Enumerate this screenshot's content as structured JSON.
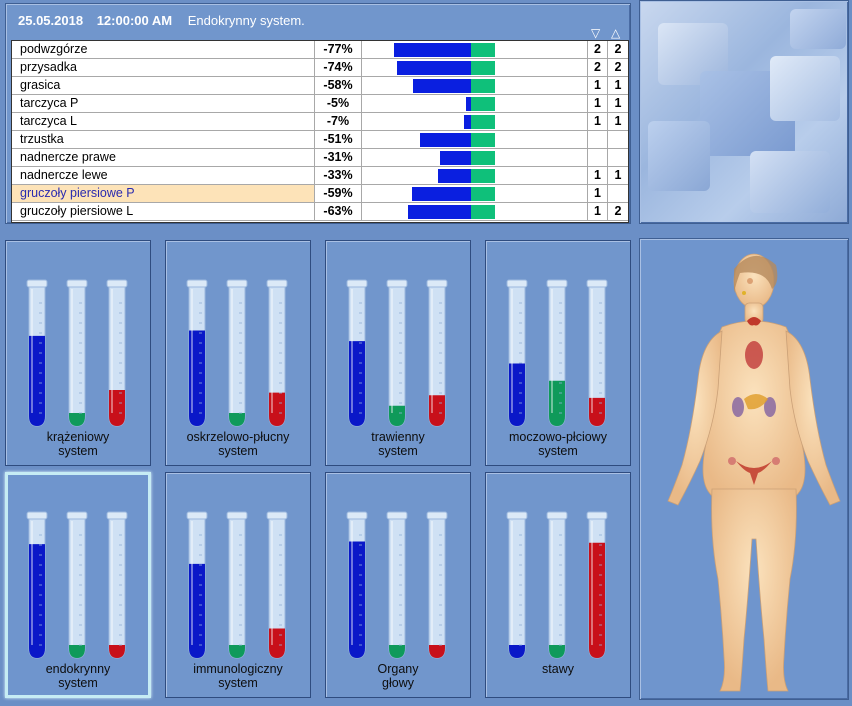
{
  "header": {
    "date": "25.05.2018",
    "time": "12:00:00 AM",
    "system": "Endokrynny system."
  },
  "columns": {
    "down_arrow": "▽",
    "up_arrow": "△"
  },
  "colors": {
    "negative_bar": "#0a1fe0",
    "positive_bar": "#0fc07a",
    "tube_blue": "#0a18c8",
    "tube_green": "#0f9a5a",
    "tube_red": "#c8101a",
    "highlight_row": "#fde3b8"
  },
  "rows": [
    {
      "name": "podwzgórze",
      "pct": "-77%",
      "neg": 77,
      "d1": "2",
      "d2": "2",
      "selected": false
    },
    {
      "name": "przysadka",
      "pct": "-74%",
      "neg": 74,
      "d1": "2",
      "d2": "2",
      "selected": false
    },
    {
      "name": "grasica",
      "pct": "-58%",
      "neg": 58,
      "d1": "1",
      "d2": "1",
      "selected": false
    },
    {
      "name": "tarczyca P",
      "pct": "-5%",
      "neg": 5,
      "d1": "1",
      "d2": "1",
      "selected": false
    },
    {
      "name": "tarczyca L",
      "pct": "-7%",
      "neg": 7,
      "d1": "1",
      "d2": "1",
      "selected": false
    },
    {
      "name": "trzustka",
      "pct": "-51%",
      "neg": 51,
      "d1": "",
      "d2": "",
      "selected": false
    },
    {
      "name": "nadnercze prawe",
      "pct": "-31%",
      "neg": 31,
      "d1": "",
      "d2": "",
      "selected": false
    },
    {
      "name": "nadnercze lewe",
      "pct": "-33%",
      "neg": 33,
      "d1": "1",
      "d2": "1",
      "selected": false
    },
    {
      "name": "gruczoły piersiowe P",
      "pct": "-59%",
      "neg": 59,
      "d1": "1",
      "d2": "",
      "selected": true
    },
    {
      "name": "gruczoły piersiowe L",
      "pct": "-63%",
      "neg": 63,
      "d1": "1",
      "d2": "2",
      "selected": false
    }
  ],
  "systems": [
    {
      "line1": "krążeniowy",
      "line2": "system",
      "blue": 0.63,
      "green": 0.04,
      "red": 0.22,
      "active": false
    },
    {
      "line1": "oskrzelowo-płucny",
      "line2": "system",
      "blue": 0.67,
      "green": 0.04,
      "red": 0.2,
      "active": false
    },
    {
      "line1": "trawienny",
      "line2": "system",
      "blue": 0.59,
      "green": 0.1,
      "red": 0.18,
      "active": false
    },
    {
      "line1": "moczowo-płciowy",
      "line2": "system",
      "blue": 0.42,
      "green": 0.29,
      "red": 0.16,
      "active": false
    },
    {
      "line1": "endokrynny",
      "line2": "system",
      "blue": 0.81,
      "green": 0.04,
      "red": 0.04,
      "active": true
    },
    {
      "line1": "immunologiczny",
      "line2": "system",
      "blue": 0.66,
      "green": 0.04,
      "red": 0.17,
      "active": false
    },
    {
      "line1": "Organy",
      "line2": "głowy",
      "blue": 0.83,
      "green": 0.04,
      "red": 0.04,
      "active": false
    },
    {
      "line1": "stawy",
      "line2": "",
      "blue": 0.04,
      "green": 0.04,
      "red": 0.82,
      "active": false
    }
  ],
  "body_figure": {
    "icon": "female-body-anatomy-icon"
  }
}
